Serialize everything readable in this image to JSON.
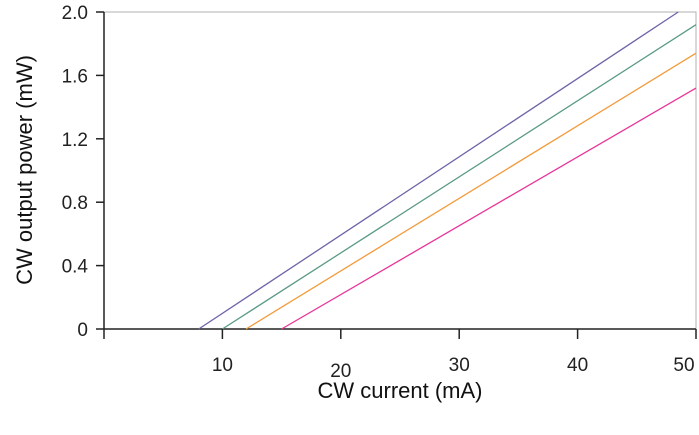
{
  "chart_data": {
    "type": "line",
    "title": "",
    "xlabel": "CW current (mA)",
    "ylabel": "CW output power (mW)",
    "xlim": [
      0,
      50
    ],
    "ylim": [
      0,
      2.0
    ],
    "xticks": [
      10,
      20,
      30,
      40,
      50
    ],
    "xtick_labels": [
      "10",
      "20",
      "30",
      "40",
      "50"
    ],
    "yticks": [
      0,
      0.4,
      0.8,
      1.2,
      1.6,
      2.0
    ],
    "ytick_labels": [
      "0",
      "0.4",
      "0.8",
      "1.2",
      "1.6",
      "2.0"
    ],
    "grid": false,
    "legend": "none",
    "series": [
      {
        "color": "#6e64a8",
        "x": [
          8,
          48.5
        ],
        "y": [
          0,
          2.0
        ]
      },
      {
        "color": "#5a9a86",
        "x": [
          10,
          50
        ],
        "y": [
          0,
          1.92
        ]
      },
      {
        "color": "#f39a3a",
        "x": [
          12,
          50
        ],
        "y": [
          0,
          1.74
        ]
      },
      {
        "color": "#e8359a",
        "x": [
          15,
          50
        ],
        "y": [
          0,
          1.52
        ]
      }
    ]
  }
}
